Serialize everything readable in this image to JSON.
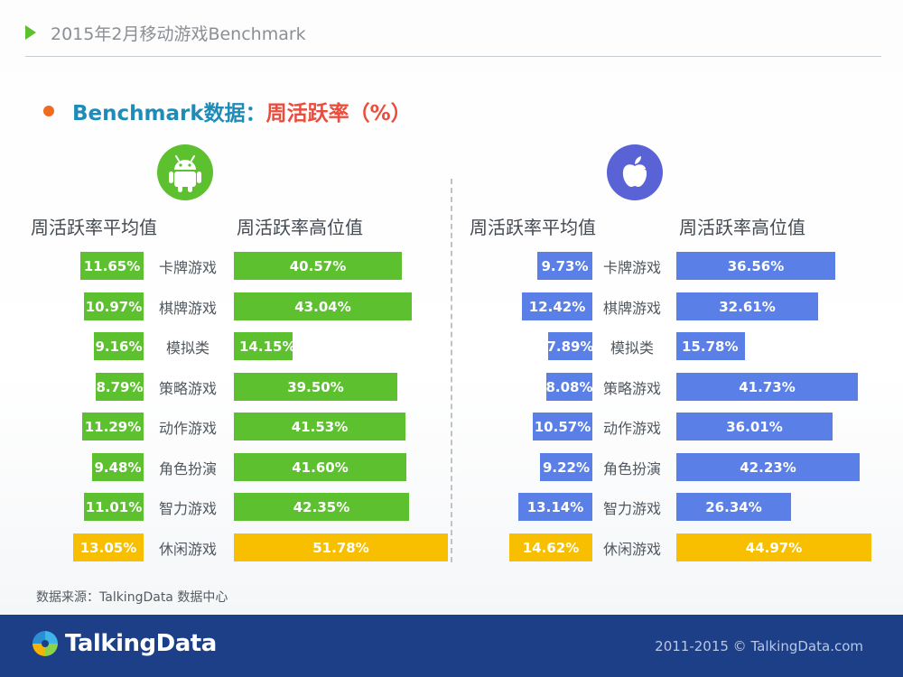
{
  "header": {
    "title": "2015年2月移动游戏Benchmark"
  },
  "subtitle": {
    "part1": "Benchmark数据：",
    "part2": "周活跃率（%）"
  },
  "colors": {
    "android": "#5cc02f",
    "ios": "#5a7fe6",
    "highlight": "#f8bf00"
  },
  "chart_data": {
    "type": "bar",
    "title": "Benchmark数据：周活跃率（%）",
    "categories": [
      "卡牌游戏",
      "棋牌游戏",
      "模拟类",
      "策略游戏",
      "动作游戏",
      "角色扮演",
      "智力游戏",
      "休闲游戏"
    ],
    "highlight_category": "休闲游戏",
    "panels": [
      {
        "platform": "Android",
        "icon": "android-icon",
        "series": [
          {
            "name": "周活跃率平均值",
            "values": [
              11.65,
              10.97,
              9.16,
              8.79,
              11.29,
              9.48,
              11.01,
              13.05
            ],
            "labels": [
              "11.65%",
              "10.97%",
              "9.16%",
              "8.79%",
              "11.29%",
              "9.48%",
              "11.01%",
              "13.05%"
            ]
          },
          {
            "name": "周活跃率高位值",
            "values": [
              40.57,
              43.04,
              14.15,
              39.5,
              41.53,
              41.6,
              42.35,
              51.78
            ],
            "labels": [
              "40.57%",
              "43.04%",
              "14.15%",
              "39.50%",
              "41.53%",
              "41.60%",
              "42.35%",
              "51.78%"
            ]
          }
        ]
      },
      {
        "platform": "iOS",
        "icon": "apple-icon",
        "series": [
          {
            "name": "周活跃率平均值",
            "values": [
              9.73,
              12.42,
              7.89,
              8.08,
              10.57,
              9.22,
              13.14,
              14.62
            ],
            "labels": [
              "9.73%",
              "12.42%",
              "7.89%",
              "8.08%",
              "10.57%",
              "9.22%",
              "13.14%",
              "14.62%"
            ]
          },
          {
            "name": "周活跃率高位值",
            "values": [
              36.56,
              32.61,
              15.78,
              41.73,
              36.01,
              42.23,
              26.34,
              44.97
            ],
            "labels": [
              "36.56%",
              "32.61%",
              "15.78%",
              "41.73%",
              "36.01%",
              "42.23%",
              "26.34%",
              "44.97%"
            ]
          }
        ]
      }
    ]
  },
  "source": "数据来源：TalkingData 数据中心",
  "footer": {
    "logo_text": "TalkingData",
    "copyright": "2011-2015 © TalkingData.com"
  }
}
